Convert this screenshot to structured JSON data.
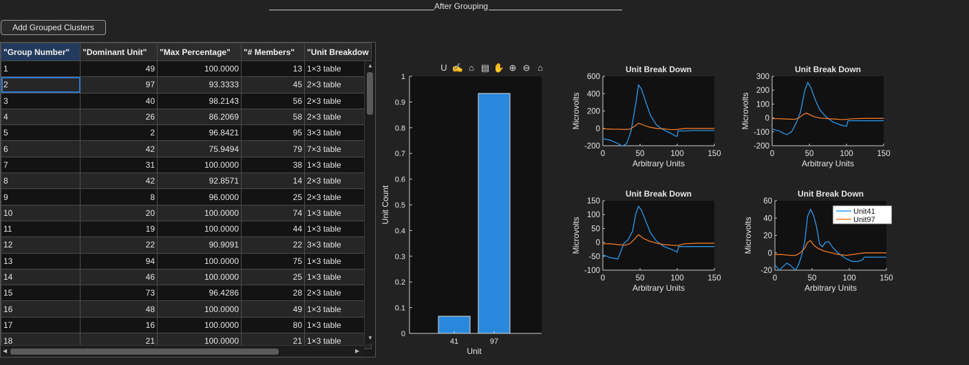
{
  "header": {
    "title": "After Grouping"
  },
  "toolbar": {
    "add_button_label": "Add Grouped Clusters",
    "axes_tools": [
      {
        "name": "data-tips-icon",
        "glyph": "U"
      },
      {
        "name": "brush-icon",
        "glyph": "✍"
      },
      {
        "name": "clean-icon",
        "glyph": "⌂"
      },
      {
        "name": "legend-icon",
        "glyph": "▤"
      },
      {
        "name": "pan-icon",
        "glyph": "✋"
      },
      {
        "name": "zoom-in-icon",
        "glyph": "⊕"
      },
      {
        "name": "zoom-out-icon",
        "glyph": "⊖"
      },
      {
        "name": "home-icon",
        "glyph": "⌂"
      }
    ]
  },
  "table": {
    "columns": [
      "\"Group Number\"",
      "\"Dominant Unit\"",
      "\"Max Percentage\"",
      "\"# Members\"",
      "\"Unit Breakdow"
    ],
    "rows": [
      [
        "1",
        "49",
        "100.0000",
        "13",
        "1×3 table"
      ],
      [
        "2",
        "97",
        "93.3333",
        "45",
        "2×3 table"
      ],
      [
        "3",
        "40",
        "98.2143",
        "56",
        "2×3 table"
      ],
      [
        "4",
        "26",
        "86.2069",
        "58",
        "2×3 table"
      ],
      [
        "5",
        "2",
        "96.8421",
        "95",
        "3×3 table"
      ],
      [
        "6",
        "42",
        "75.9494",
        "79",
        "7×3 table"
      ],
      [
        "7",
        "31",
        "100.0000",
        "38",
        "1×3 table"
      ],
      [
        "8",
        "42",
        "92.8571",
        "14",
        "2×3 table"
      ],
      [
        "9",
        "8",
        "96.0000",
        "25",
        "2×3 table"
      ],
      [
        "10",
        "20",
        "100.0000",
        "74",
        "1×3 table"
      ],
      [
        "11",
        "19",
        "100.0000",
        "44",
        "1×3 table"
      ],
      [
        "12",
        "22",
        "90.9091",
        "22",
        "3×3 table"
      ],
      [
        "13",
        "94",
        "100.0000",
        "75",
        "1×3 table"
      ],
      [
        "14",
        "46",
        "100.0000",
        "25",
        "1×3 table"
      ],
      [
        "15",
        "73",
        "96.4286",
        "28",
        "2×3 table"
      ],
      [
        "16",
        "48",
        "100.0000",
        "49",
        "1×3 table"
      ],
      [
        "17",
        "16",
        "100.0000",
        "80",
        "1×3 table"
      ],
      [
        "18",
        "21",
        "100.0000",
        "21",
        "1×3 table"
      ]
    ],
    "selected_row": 1
  },
  "colors": {
    "background": "#222222",
    "axes_background": "#111111",
    "bar": "#2a88dc",
    "unit41": "#2b9bf0",
    "unit97": "#f07a28",
    "selection": "#2d7bd4"
  },
  "chart_data": [
    {
      "type": "bar",
      "categories": [
        "41",
        "97"
      ],
      "values": [
        0.0667,
        0.9333
      ],
      "xlabel": "Unit",
      "ylabel": "Unit Count",
      "ylim": [
        0,
        1
      ],
      "yticks": [
        "0",
        "0.1",
        "0.2",
        "0.3",
        "0.4",
        "0.5",
        "0.6",
        "0.7",
        "0.8",
        "0.9",
        "1"
      ],
      "grid": false
    },
    {
      "type": "line",
      "title": "Unit Break Down",
      "xlabel": "Arbitrary Units",
      "ylabel": "Microvolts",
      "xlim": [
        0,
        150
      ],
      "ylim": [
        -200,
        600
      ],
      "xticks": [
        0,
        50,
        100,
        150
      ],
      "yticks": [
        -200,
        0,
        200,
        400,
        600
      ],
      "series": [
        {
          "x": [
            0,
            10,
            20,
            26,
            32,
            38,
            44,
            48,
            52,
            58,
            64,
            72,
            80,
            90,
            98,
            100,
            101,
            110,
            120,
            130,
            150
          ],
          "y": [
            -120,
            -135,
            -175,
            -205,
            -175,
            -30,
            270,
            500,
            450,
            300,
            150,
            40,
            -10,
            -50,
            -90,
            -90,
            -30,
            -30,
            -25,
            -25,
            -25
          ]
        },
        {
          "x": [
            0,
            10,
            20,
            30,
            36,
            42,
            48,
            54,
            62,
            72,
            82,
            92,
            100,
            110,
            130,
            150
          ],
          "y": [
            -5,
            -8,
            -10,
            -12,
            -10,
            20,
            60,
            40,
            15,
            0,
            -5,
            -15,
            -12,
            0,
            0,
            0
          ]
        }
      ]
    },
    {
      "type": "line",
      "title": "Unit Break Down",
      "xlabel": "Arbitrary Units",
      "ylabel": "Microvolts",
      "xlim": [
        0,
        150
      ],
      "ylim": [
        -200,
        300
      ],
      "xticks": [
        0,
        50,
        100,
        150
      ],
      "yticks": [
        -200,
        -100,
        0,
        100,
        200,
        300
      ],
      "series": [
        {
          "x": [
            0,
            10,
            15,
            20,
            26,
            32,
            38,
            44,
            48,
            52,
            58,
            64,
            72,
            82,
            92,
            100,
            102,
            110,
            130,
            150
          ],
          "y": [
            -80,
            -95,
            -110,
            -120,
            -100,
            -40,
            40,
            200,
            255,
            220,
            130,
            60,
            10,
            -30,
            -50,
            -60,
            -20,
            -20,
            -20,
            -20
          ]
        },
        {
          "x": [
            0,
            10,
            20,
            30,
            36,
            42,
            46,
            50,
            56,
            64,
            74,
            84,
            94,
            100,
            110,
            130,
            150
          ],
          "y": [
            -5,
            -5,
            -8,
            -10,
            0,
            25,
            35,
            25,
            10,
            0,
            -5,
            -8,
            -12,
            -10,
            -5,
            -3,
            -3
          ]
        }
      ]
    },
    {
      "type": "line",
      "title": "Unit Break Down",
      "xlabel": "Arbitrary Units",
      "ylabel": "Microvolts",
      "xlim": [
        0,
        150
      ],
      "ylim": [
        -100,
        150
      ],
      "xticks": [
        0,
        50,
        100,
        150
      ],
      "yticks": [
        -100,
        -50,
        0,
        50,
        100,
        150
      ],
      "series": [
        {
          "x": [
            0,
            10,
            20,
            24,
            28,
            34,
            40,
            44,
            48,
            52,
            58,
            64,
            72,
            82,
            92,
            100,
            102,
            110,
            130,
            150
          ],
          "y": [
            -45,
            -55,
            -60,
            -35,
            -5,
            10,
            40,
            100,
            130,
            115,
            75,
            35,
            5,
            -15,
            -25,
            -35,
            -15,
            -15,
            -15,
            -15
          ]
        },
        {
          "x": [
            0,
            10,
            20,
            30,
            36,
            42,
            48,
            54,
            62,
            72,
            82,
            92,
            100,
            110,
            130,
            150
          ],
          "y": [
            -5,
            -5,
            -8,
            -10,
            -5,
            10,
            28,
            15,
            5,
            -3,
            -8,
            -10,
            -12,
            -5,
            -3,
            -3
          ]
        }
      ]
    },
    {
      "type": "line",
      "title": "Unit Break Down",
      "xlabel": "Arbitrary Units",
      "ylabel": "Microvolts",
      "xlim": [
        0,
        150
      ],
      "ylim": [
        -20,
        60
      ],
      "xticks": [
        0,
        50,
        100,
        150
      ],
      "yticks": [
        -20,
        0,
        20,
        40,
        60
      ],
      "legend": "top-right",
      "series": [
        {
          "name": "Unit41",
          "x": [
            0,
            6,
            12,
            16,
            20,
            24,
            28,
            32,
            36,
            40,
            44,
            48,
            52,
            56,
            60,
            64,
            68,
            72,
            78,
            86,
            96,
            104,
            112,
            118,
            120,
            126,
            130,
            150
          ],
          "y": [
            -14,
            -20,
            -15,
            -12,
            -14,
            -17,
            -20,
            -13,
            -3,
            12,
            42,
            50,
            43,
            30,
            10,
            7,
            12,
            13,
            6,
            -1,
            -7,
            -10,
            -10,
            -8,
            -5,
            -5,
            -5,
            -5
          ]
        },
        {
          "name": "Unit97",
          "x": [
            0,
            10,
            20,
            28,
            34,
            40,
            44,
            48,
            52,
            58,
            66,
            76,
            86,
            96,
            104,
            112,
            120,
            130,
            150
          ],
          "y": [
            -2,
            -2,
            -3,
            -3,
            0,
            5,
            12,
            14,
            9,
            5,
            2,
            0,
            -2,
            -3,
            -2,
            -1,
            0,
            0,
            0
          ]
        }
      ]
    }
  ]
}
